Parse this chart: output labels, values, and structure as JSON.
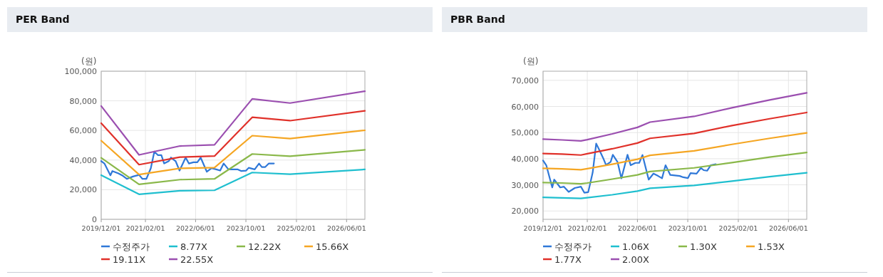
{
  "chart_data": [
    {
      "type": "line",
      "title": "PER Band",
      "ylabel": "(원)",
      "grid": true,
      "legend": "bottom",
      "marker": "none",
      "xlim": [
        "2019-12-01",
        "2026-11-25"
      ],
      "ylim": [
        0,
        100000
      ],
      "xticks": [
        {
          "value": "2019-12-01",
          "label": "2019/12/01"
        },
        {
          "value": "2021-02-01",
          "label": "2021/02/01"
        },
        {
          "value": "2022-06-01",
          "label": "2022/06/01"
        },
        {
          "value": "2023-10-01",
          "label": "2023/10/01"
        },
        {
          "value": "2025-02-01",
          "label": "2025/02/01"
        },
        {
          "value": "2026-06-01",
          "label": "2026/06/01"
        }
      ],
      "yticks": [
        {
          "value": 0,
          "label": "0"
        },
        {
          "value": 20000,
          "label": "20,000"
        },
        {
          "value": 40000,
          "label": "40,000"
        },
        {
          "value": 60000,
          "label": "60,000"
        },
        {
          "value": 80000,
          "label": "80,000"
        },
        {
          "value": 100000,
          "label": "100,000"
        }
      ],
      "series": [
        {
          "name": "수정주가",
          "color": "#2f78d8",
          "x": [
            "2019-12-01",
            "2020-01-01",
            "2020-02-28",
            "2020-03-18",
            "2020-05-15",
            "2020-06-20",
            "2020-08-05",
            "2020-10-03",
            "2020-12-01",
            "2021-01-03",
            "2021-02-10",
            "2021-03-25",
            "2021-04-28",
            "2021-06-03",
            "2021-07-05",
            "2021-08-01",
            "2021-09-15",
            "2021-10-06",
            "2021-11-20",
            "2021-12-28",
            "2022-02-25",
            "2022-03-28",
            "2022-05-12",
            "2022-06-18",
            "2022-07-20",
            "2022-09-18",
            "2022-11-03",
            "2022-12-18",
            "2023-01-25",
            "2023-02-28",
            "2023-04-15",
            "2023-07-15",
            "2023-08-18",
            "2023-10-03",
            "2023-10-28",
            "2023-12-25",
            "2024-02-05",
            "2024-03-03",
            "2024-04-05",
            "2024-05-10",
            "2024-06-28"
          ],
          "values": [
            39300,
            37700,
            29700,
            32600,
            31000,
            29700,
            27300,
            28900,
            30000,
            27300,
            27300,
            34500,
            45700,
            43300,
            43300,
            37700,
            39300,
            41700,
            39300,
            32900,
            41700,
            37700,
            38500,
            38500,
            41700,
            32100,
            34500,
            33700,
            32900,
            37700,
            33700,
            33700,
            32600,
            32900,
            34800,
            33700,
            37700,
            35300,
            35300,
            37700,
            37700
          ]
        },
        {
          "name": "8.77X",
          "color": "#1fbfcf",
          "x": [
            "2019-12-01",
            "2020-12-01",
            "2022-01-01",
            "2022-12-01",
            "2023-12-01",
            "2024-12-01",
            "2026-11-25"
          ],
          "values": [
            29800,
            16900,
            19300,
            19600,
            31600,
            30500,
            33700
          ]
        },
        {
          "name": "12.22X",
          "color": "#8ab84a",
          "x": [
            "2019-12-01",
            "2020-12-01",
            "2022-01-01",
            "2022-12-01",
            "2023-12-01",
            "2024-12-01",
            "2026-11-25"
          ],
          "values": [
            41500,
            23600,
            26800,
            27300,
            44100,
            42600,
            46900
          ]
        },
        {
          "name": "15.66X",
          "color": "#f5a623",
          "x": [
            "2019-12-01",
            "2020-12-01",
            "2022-01-01",
            "2022-12-01",
            "2023-12-01",
            "2024-12-01",
            "2026-11-25"
          ],
          "values": [
            53100,
            30200,
            34400,
            34900,
            56500,
            54500,
            60100
          ]
        },
        {
          "name": "19.11X",
          "color": "#e0312a",
          "x": [
            "2019-12-01",
            "2020-12-01",
            "2022-01-01",
            "2022-12-01",
            "2023-12-01",
            "2024-12-01",
            "2026-11-25"
          ],
          "values": [
            64900,
            36900,
            42000,
            42700,
            68900,
            66600,
            73300
          ]
        },
        {
          "name": "22.55X",
          "color": "#9b4fb0",
          "x": [
            "2019-12-01",
            "2020-12-01",
            "2022-01-01",
            "2022-12-01",
            "2023-12-01",
            "2024-12-01",
            "2026-11-25"
          ],
          "values": [
            76500,
            43500,
            49500,
            50300,
            81300,
            78500,
            86500
          ]
        }
      ]
    },
    {
      "type": "line",
      "title": "PBR Band",
      "ylabel": "(원)",
      "grid": true,
      "legend": "bottom",
      "marker": "none",
      "xlim": [
        "2019-12-01",
        "2026-11-25"
      ],
      "ylim": [
        16800,
        73500
      ],
      "xticks": [
        {
          "value": "2019-12-01",
          "label": "2019/12/01"
        },
        {
          "value": "2021-02-01",
          "label": "2021/02/01"
        },
        {
          "value": "2022-06-01",
          "label": "2022/06/01"
        },
        {
          "value": "2023-10-01",
          "label": "2023/10/01"
        },
        {
          "value": "2025-02-01",
          "label": "2025/02/01"
        },
        {
          "value": "2026-06-01",
          "label": "2026/06/01"
        }
      ],
      "yticks": [
        {
          "value": 20000,
          "label": "20,000"
        },
        {
          "value": 30000,
          "label": "30,000"
        },
        {
          "value": 40000,
          "label": "40,000"
        },
        {
          "value": 50000,
          "label": "50,000"
        },
        {
          "value": 60000,
          "label": "60,000"
        },
        {
          "value": 70000,
          "label": "70,000"
        }
      ],
      "series": [
        {
          "name": "수정주가",
          "color": "#2f78d8",
          "x": [
            "2019-12-01",
            "2020-01-01",
            "2020-02-28",
            "2020-03-18",
            "2020-05-15",
            "2020-06-20",
            "2020-08-05",
            "2020-10-03",
            "2020-12-01",
            "2021-01-03",
            "2021-02-10",
            "2021-03-25",
            "2021-04-28",
            "2021-06-03",
            "2021-07-05",
            "2021-08-01",
            "2021-09-15",
            "2021-10-06",
            "2021-11-20",
            "2021-12-28",
            "2022-02-25",
            "2022-03-28",
            "2022-05-12",
            "2022-06-18",
            "2022-07-20",
            "2022-09-18",
            "2022-11-03",
            "2022-12-18",
            "2023-01-25",
            "2023-02-28",
            "2023-04-15",
            "2023-07-15",
            "2023-08-18",
            "2023-10-03",
            "2023-10-28",
            "2023-12-25",
            "2024-02-05",
            "2024-03-03",
            "2024-04-05",
            "2024-05-10",
            "2024-06-28"
          ],
          "values": [
            39300,
            37500,
            29000,
            32000,
            29000,
            29300,
            27300,
            28800,
            29300,
            27000,
            27200,
            34700,
            45800,
            42900,
            40200,
            37600,
            38800,
            41500,
            38800,
            32500,
            41500,
            37500,
            38400,
            38400,
            41400,
            32000,
            34300,
            33400,
            32500,
            37500,
            33800,
            33400,
            32900,
            32600,
            34500,
            34300,
            36500,
            35600,
            35400,
            37500,
            37900
          ]
        },
        {
          "name": "1.06X",
          "color": "#1fbfcf",
          "x": [
            "2019-12-01",
            "2020-06-01",
            "2020-12-01",
            "2021-02-01",
            "2021-10-01",
            "2022-06-01",
            "2022-10-01",
            "2023-12-01",
            "2024-12-01",
            "2025-12-01",
            "2026-11-25"
          ],
          "values": [
            25200,
            25000,
            24800,
            25100,
            26200,
            27600,
            28700,
            29800,
            31400,
            33100,
            34600
          ]
        },
        {
          "name": "1.30X",
          "color": "#8ab84a",
          "x": [
            "2019-12-01",
            "2020-06-01",
            "2020-12-01",
            "2021-02-01",
            "2021-10-01",
            "2022-06-01",
            "2022-10-01",
            "2023-12-01",
            "2024-12-01",
            "2025-12-01",
            "2026-11-25"
          ],
          "values": [
            30900,
            30700,
            30400,
            30700,
            32200,
            33800,
            35100,
            36500,
            38500,
            40600,
            42400
          ]
        },
        {
          "name": "1.53X",
          "color": "#f5a623",
          "x": [
            "2019-12-01",
            "2020-06-01",
            "2020-12-01",
            "2021-02-01",
            "2021-10-01",
            "2022-06-01",
            "2022-10-01",
            "2023-12-01",
            "2024-12-01",
            "2025-12-01",
            "2026-11-25"
          ],
          "values": [
            36300,
            36100,
            35800,
            36200,
            37900,
            39800,
            41300,
            43000,
            45500,
            47800,
            49900
          ]
        },
        {
          "name": "1.77X",
          "color": "#e0312a",
          "x": [
            "2019-12-01",
            "2020-06-01",
            "2020-12-01",
            "2021-02-01",
            "2021-10-01",
            "2022-06-01",
            "2022-10-01",
            "2023-12-01",
            "2024-12-01",
            "2025-12-01",
            "2026-11-25"
          ],
          "values": [
            42000,
            41800,
            41400,
            41900,
            43800,
            46000,
            47800,
            49700,
            52700,
            55300,
            57700
          ]
        },
        {
          "name": "2.00X",
          "color": "#9b4fb0",
          "x": [
            "2019-12-01",
            "2020-06-01",
            "2020-12-01",
            "2021-02-01",
            "2021-10-01",
            "2022-06-01",
            "2022-10-01",
            "2023-12-01",
            "2024-12-01",
            "2025-12-01",
            "2026-11-25"
          ],
          "values": [
            47500,
            47200,
            46800,
            47300,
            49500,
            52000,
            54000,
            56200,
            59500,
            62500,
            65200
          ]
        }
      ]
    }
  ]
}
